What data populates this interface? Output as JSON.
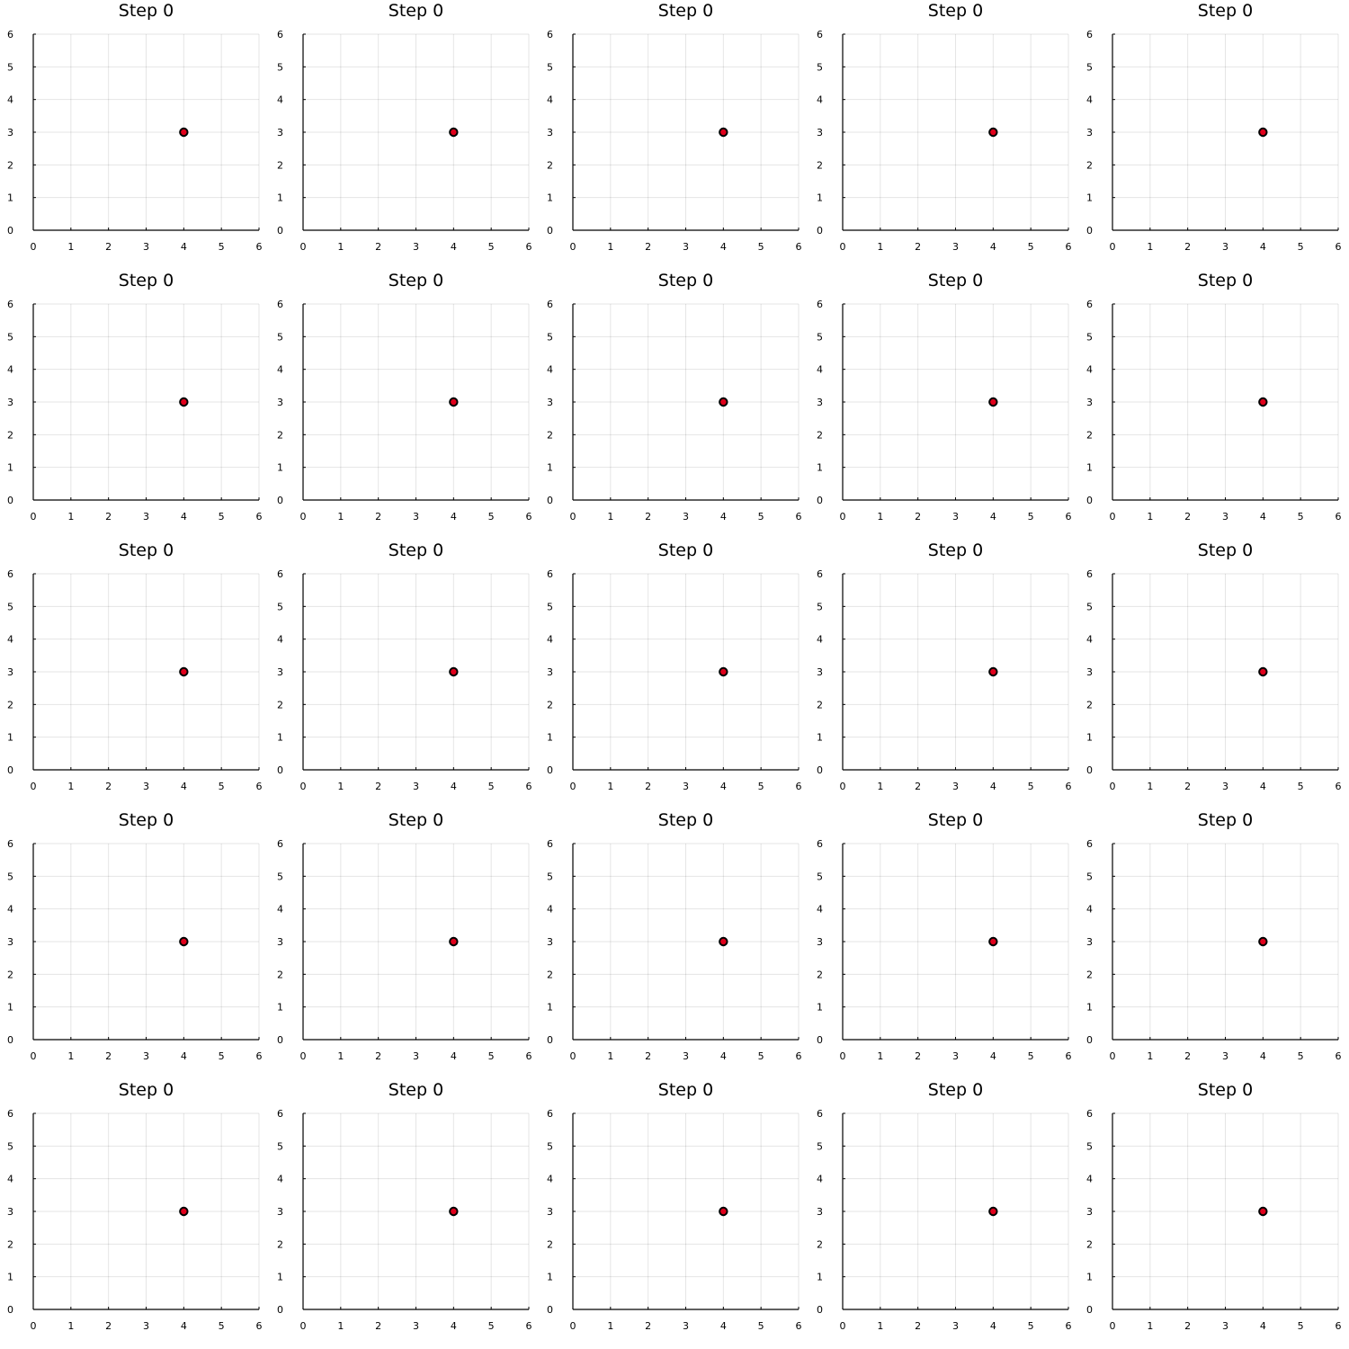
{
  "chart_data": {
    "type": "scatter",
    "grid": true,
    "legend": "none",
    "rows": 5,
    "columns": 5,
    "marker_fill": "#e0001b",
    "marker_stroke": "#000000",
    "panels": [
      {
        "title": "Step 0",
        "x": [
          4
        ],
        "y": [
          3
        ],
        "xlim": [
          0,
          6
        ],
        "ylim": [
          0,
          6
        ],
        "xticks": [
          "0",
          "1",
          "2",
          "3",
          "4",
          "5",
          "6"
        ],
        "yticks": [
          "0",
          "1",
          "2",
          "3",
          "4",
          "5",
          "6"
        ]
      },
      {
        "title": "Step 0",
        "x": [
          4
        ],
        "y": [
          3
        ],
        "xlim": [
          0,
          6
        ],
        "ylim": [
          0,
          6
        ],
        "xticks": [
          "0",
          "1",
          "2",
          "3",
          "4",
          "5",
          "6"
        ],
        "yticks": [
          "0",
          "1",
          "2",
          "3",
          "4",
          "5",
          "6"
        ]
      },
      {
        "title": "Step 0",
        "x": [
          4
        ],
        "y": [
          3
        ],
        "xlim": [
          0,
          6
        ],
        "ylim": [
          0,
          6
        ],
        "xticks": [
          "0",
          "1",
          "2",
          "3",
          "4",
          "5",
          "6"
        ],
        "yticks": [
          "0",
          "1",
          "2",
          "3",
          "4",
          "5",
          "6"
        ]
      },
      {
        "title": "Step 0",
        "x": [
          4
        ],
        "y": [
          3
        ],
        "xlim": [
          0,
          6
        ],
        "ylim": [
          0,
          6
        ],
        "xticks": [
          "0",
          "1",
          "2",
          "3",
          "4",
          "5",
          "6"
        ],
        "yticks": [
          "0",
          "1",
          "2",
          "3",
          "4",
          "5",
          "6"
        ]
      },
      {
        "title": "Step 0",
        "x": [
          4
        ],
        "y": [
          3
        ],
        "xlim": [
          0,
          6
        ],
        "ylim": [
          0,
          6
        ],
        "xticks": [
          "0",
          "1",
          "2",
          "3",
          "4",
          "5",
          "6"
        ],
        "yticks": [
          "0",
          "1",
          "2",
          "3",
          "4",
          "5",
          "6"
        ]
      },
      {
        "title": "Step 0",
        "x": [
          4
        ],
        "y": [
          3
        ],
        "xlim": [
          0,
          6
        ],
        "ylim": [
          0,
          6
        ],
        "xticks": [
          "0",
          "1",
          "2",
          "3",
          "4",
          "5",
          "6"
        ],
        "yticks": [
          "0",
          "1",
          "2",
          "3",
          "4",
          "5",
          "6"
        ]
      },
      {
        "title": "Step 0",
        "x": [
          4
        ],
        "y": [
          3
        ],
        "xlim": [
          0,
          6
        ],
        "ylim": [
          0,
          6
        ],
        "xticks": [
          "0",
          "1",
          "2",
          "3",
          "4",
          "5",
          "6"
        ],
        "yticks": [
          "0",
          "1",
          "2",
          "3",
          "4",
          "5",
          "6"
        ]
      },
      {
        "title": "Step 0",
        "x": [
          4
        ],
        "y": [
          3
        ],
        "xlim": [
          0,
          6
        ],
        "ylim": [
          0,
          6
        ],
        "xticks": [
          "0",
          "1",
          "2",
          "3",
          "4",
          "5",
          "6"
        ],
        "yticks": [
          "0",
          "1",
          "2",
          "3",
          "4",
          "5",
          "6"
        ]
      },
      {
        "title": "Step 0",
        "x": [
          4
        ],
        "y": [
          3
        ],
        "xlim": [
          0,
          6
        ],
        "ylim": [
          0,
          6
        ],
        "xticks": [
          "0",
          "1",
          "2",
          "3",
          "4",
          "5",
          "6"
        ],
        "yticks": [
          "0",
          "1",
          "2",
          "3",
          "4",
          "5",
          "6"
        ]
      },
      {
        "title": "Step 0",
        "x": [
          4
        ],
        "y": [
          3
        ],
        "xlim": [
          0,
          6
        ],
        "ylim": [
          0,
          6
        ],
        "xticks": [
          "0",
          "1",
          "2",
          "3",
          "4",
          "5",
          "6"
        ],
        "yticks": [
          "0",
          "1",
          "2",
          "3",
          "4",
          "5",
          "6"
        ]
      },
      {
        "title": "Step 0",
        "x": [
          4
        ],
        "y": [
          3
        ],
        "xlim": [
          0,
          6
        ],
        "ylim": [
          0,
          6
        ],
        "xticks": [
          "0",
          "1",
          "2",
          "3",
          "4",
          "5",
          "6"
        ],
        "yticks": [
          "0",
          "1",
          "2",
          "3",
          "4",
          "5",
          "6"
        ]
      },
      {
        "title": "Step 0",
        "x": [
          4
        ],
        "y": [
          3
        ],
        "xlim": [
          0,
          6
        ],
        "ylim": [
          0,
          6
        ],
        "xticks": [
          "0",
          "1",
          "2",
          "3",
          "4",
          "5",
          "6"
        ],
        "yticks": [
          "0",
          "1",
          "2",
          "3",
          "4",
          "5",
          "6"
        ]
      },
      {
        "title": "Step 0",
        "x": [
          4
        ],
        "y": [
          3
        ],
        "xlim": [
          0,
          6
        ],
        "ylim": [
          0,
          6
        ],
        "xticks": [
          "0",
          "1",
          "2",
          "3",
          "4",
          "5",
          "6"
        ],
        "yticks": [
          "0",
          "1",
          "2",
          "3",
          "4",
          "5",
          "6"
        ]
      },
      {
        "title": "Step 0",
        "x": [
          4
        ],
        "y": [
          3
        ],
        "xlim": [
          0,
          6
        ],
        "ylim": [
          0,
          6
        ],
        "xticks": [
          "0",
          "1",
          "2",
          "3",
          "4",
          "5",
          "6"
        ],
        "yticks": [
          "0",
          "1",
          "2",
          "3",
          "4",
          "5",
          "6"
        ]
      },
      {
        "title": "Step 0",
        "x": [
          4
        ],
        "y": [
          3
        ],
        "xlim": [
          0,
          6
        ],
        "ylim": [
          0,
          6
        ],
        "xticks": [
          "0",
          "1",
          "2",
          "3",
          "4",
          "5",
          "6"
        ],
        "yticks": [
          "0",
          "1",
          "2",
          "3",
          "4",
          "5",
          "6"
        ]
      },
      {
        "title": "Step 0",
        "x": [
          4
        ],
        "y": [
          3
        ],
        "xlim": [
          0,
          6
        ],
        "ylim": [
          0,
          6
        ],
        "xticks": [
          "0",
          "1",
          "2",
          "3",
          "4",
          "5",
          "6"
        ],
        "yticks": [
          "0",
          "1",
          "2",
          "3",
          "4",
          "5",
          "6"
        ]
      },
      {
        "title": "Step 0",
        "x": [
          4
        ],
        "y": [
          3
        ],
        "xlim": [
          0,
          6
        ],
        "ylim": [
          0,
          6
        ],
        "xticks": [
          "0",
          "1",
          "2",
          "3",
          "4",
          "5",
          "6"
        ],
        "yticks": [
          "0",
          "1",
          "2",
          "3",
          "4",
          "5",
          "6"
        ]
      },
      {
        "title": "Step 0",
        "x": [
          4
        ],
        "y": [
          3
        ],
        "xlim": [
          0,
          6
        ],
        "ylim": [
          0,
          6
        ],
        "xticks": [
          "0",
          "1",
          "2",
          "3",
          "4",
          "5",
          "6"
        ],
        "yticks": [
          "0",
          "1",
          "2",
          "3",
          "4",
          "5",
          "6"
        ]
      },
      {
        "title": "Step 0",
        "x": [
          4
        ],
        "y": [
          3
        ],
        "xlim": [
          0,
          6
        ],
        "ylim": [
          0,
          6
        ],
        "xticks": [
          "0",
          "1",
          "2",
          "3",
          "4",
          "5",
          "6"
        ],
        "yticks": [
          "0",
          "1",
          "2",
          "3",
          "4",
          "5",
          "6"
        ]
      },
      {
        "title": "Step 0",
        "x": [
          4
        ],
        "y": [
          3
        ],
        "xlim": [
          0,
          6
        ],
        "ylim": [
          0,
          6
        ],
        "xticks": [
          "0",
          "1",
          "2",
          "3",
          "4",
          "5",
          "6"
        ],
        "yticks": [
          "0",
          "1",
          "2",
          "3",
          "4",
          "5",
          "6"
        ]
      },
      {
        "title": "Step 0",
        "x": [
          4
        ],
        "y": [
          3
        ],
        "xlim": [
          0,
          6
        ],
        "ylim": [
          0,
          6
        ],
        "xticks": [
          "0",
          "1",
          "2",
          "3",
          "4",
          "5",
          "6"
        ],
        "yticks": [
          "0",
          "1",
          "2",
          "3",
          "4",
          "5",
          "6"
        ]
      },
      {
        "title": "Step 0",
        "x": [
          4
        ],
        "y": [
          3
        ],
        "xlim": [
          0,
          6
        ],
        "ylim": [
          0,
          6
        ],
        "xticks": [
          "0",
          "1",
          "2",
          "3",
          "4",
          "5",
          "6"
        ],
        "yticks": [
          "0",
          "1",
          "2",
          "3",
          "4",
          "5",
          "6"
        ]
      },
      {
        "title": "Step 0",
        "x": [
          4
        ],
        "y": [
          3
        ],
        "xlim": [
          0,
          6
        ],
        "ylim": [
          0,
          6
        ],
        "xticks": [
          "0",
          "1",
          "2",
          "3",
          "4",
          "5",
          "6"
        ],
        "yticks": [
          "0",
          "1",
          "2",
          "3",
          "4",
          "5",
          "6"
        ]
      },
      {
        "title": "Step 0",
        "x": [
          4
        ],
        "y": [
          3
        ],
        "xlim": [
          0,
          6
        ],
        "ylim": [
          0,
          6
        ],
        "xticks": [
          "0",
          "1",
          "2",
          "3",
          "4",
          "5",
          "6"
        ],
        "yticks": [
          "0",
          "1",
          "2",
          "3",
          "4",
          "5",
          "6"
        ]
      },
      {
        "title": "Step 0",
        "x": [
          4
        ],
        "y": [
          3
        ],
        "xlim": [
          0,
          6
        ],
        "ylim": [
          0,
          6
        ],
        "xticks": [
          "0",
          "1",
          "2",
          "3",
          "4",
          "5",
          "6"
        ],
        "yticks": [
          "0",
          "1",
          "2",
          "3",
          "4",
          "5",
          "6"
        ]
      }
    ]
  }
}
